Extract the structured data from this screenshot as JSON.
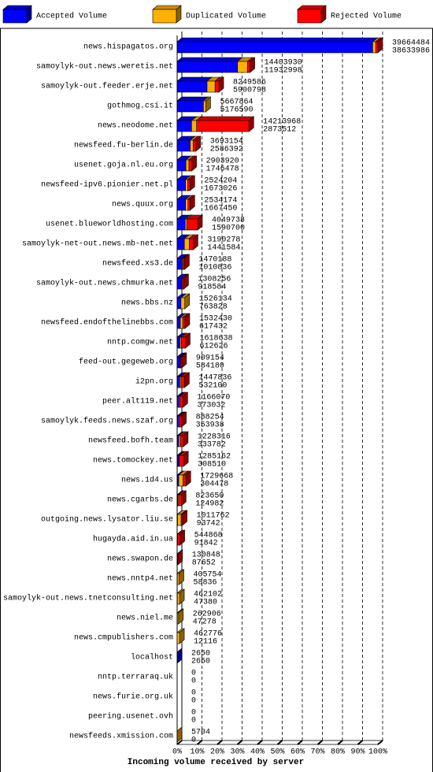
{
  "chart_data": {
    "type": "bar",
    "orientation": "horizontal",
    "stacked": true,
    "xlabel": "Incoming volume received by server",
    "categories": [
      "news.hispagatos.org",
      "samoylyk-out.news.weretis.net",
      "samoylyk-out.feeder.erje.net",
      "gothmog.csi.it",
      "news.neodome.net",
      "newsfeed.fu-berlin.de",
      "usenet.goja.nl.eu.org",
      "newsfeed-ipv6.pionier.net.pl",
      "news.quux.org",
      "usenet.blueworldhosting.com",
      "samoylyk-net-out.news.mb-net.net",
      "newsfeed.xs3.de",
      "samoylyk-out.news.chmurka.net",
      "news.bbs.nz",
      "newsfeed.endofthelinebbs.com",
      "nntp.comgw.net",
      "feed-out.gegeweb.org",
      "i2pn.org",
      "peer.alt119.net",
      "samoylyk.feeds.news.szaf.org",
      "newsfeed.bofh.team",
      "news.tomockey.net",
      "news.1d4.us",
      "news.cgarbs.de",
      "outgoing.news.lysator.liu.se",
      "hugayda.aid.in.ua",
      "news.swapon.de",
      "news.nntp4.net",
      "samoylyk-out.news.tnetconsulting.net",
      "news.niel.me",
      "news.cmpublishers.com",
      "localhost",
      "nntp.terraraq.uk",
      "news.furie.org.uk",
      "peering.usenet.ovh",
      "newsfeeds.xmission.com"
    ],
    "series": [
      {
        "name": "Accepted Volume",
        "color": "#0000ff",
        "values": [
          97.4,
          30.1,
          14.9,
          13.1,
          7.2,
          6.5,
          4.4,
          4.2,
          4.2,
          4.0,
          3.6,
          2.5,
          2.3,
          1.9,
          1.6,
          1.5,
          1.5,
          1.3,
          0.9,
          0.9,
          0.8,
          0.8,
          0.8,
          0.3,
          0.2,
          0.2,
          0.2,
          0.1,
          0.1,
          0.1,
          0,
          0.01,
          0,
          0,
          0,
          0
        ]
      },
      {
        "name": "Duplicated Volume",
        "color": "#ffb000",
        "values": [
          1.5,
          5.0,
          4.0,
          1.2,
          2.5,
          1.5,
          1.5,
          1.1,
          1.2,
          0.8,
          2.4,
          0.4,
          0.3,
          1.9,
          1.2,
          0.6,
          0.2,
          0.6,
          0.5,
          0.4,
          0.8,
          0.3,
          2.2,
          0.4,
          1.8,
          0,
          0,
          0.9,
          1.1,
          0.6,
          1.2,
          0,
          0,
          0,
          0,
          0.01
        ]
      },
      {
        "name": "Rejected Volume",
        "color": "#ff0000",
        "values": [
          1.1,
          1.2,
          1.9,
          0,
          26.1,
          1.3,
          1.4,
          1.1,
          1.0,
          5.4,
          2.0,
          0.8,
          0.7,
          0,
          1.1,
          2.0,
          0.6,
          1.8,
          1.5,
          0.9,
          1.5,
          2.1,
          1.4,
          1.4,
          0.6,
          1.2,
          0.1,
          0,
          0,
          0,
          0,
          0,
          0,
          0,
          0,
          0
        ]
      }
    ],
    "annotations": {
      "upper": [
        39664484,
        14403930,
        8249586,
        5667864,
        14213968,
        3693154,
        2903920,
        2524204,
        2534174,
        4049738,
        3190278,
        1470188,
        1308256,
        1526134,
        1532430,
        1618638,
        909154,
        1447836,
        1166070,
        888254,
        1228316,
        1285162,
        1729668,
        823650,
        1011762,
        544868,
        130848,
        405754,
        462102,
        262906,
        462776,
        2650,
        0,
        0,
        0,
        5704
      ],
      "lower": [
        38633986,
        11932998,
        5900798,
        5176590,
        2873512,
        2586392,
        1746478,
        1673026,
        1667450,
        1590700,
        1441584,
        1010836,
        918584,
        763828,
        617432,
        612626,
        584180,
        532100,
        373032,
        353938,
        333782,
        308510,
        304478,
        124982,
        93742,
        91842,
        87652,
        58836,
        47380,
        47278,
        12116,
        2650,
        0,
        0,
        0,
        0
      ]
    },
    "xlim": [
      0,
      100
    ],
    "xticks": [
      {
        "value": 0,
        "label": "0%"
      },
      {
        "value": 10,
        "label": "10%"
      },
      {
        "value": 20,
        "label": "20%"
      },
      {
        "value": 30,
        "label": "30%"
      },
      {
        "value": 40,
        "label": "40%"
      },
      {
        "value": 50,
        "label": "50%"
      },
      {
        "value": 60,
        "label": "60%"
      },
      {
        "value": 70,
        "label": "70%"
      },
      {
        "value": 80,
        "label": "80%"
      },
      {
        "value": 90,
        "label": "90%"
      },
      {
        "value": 100,
        "label": "100%"
      }
    ],
    "grid": true,
    "legend": "top"
  }
}
